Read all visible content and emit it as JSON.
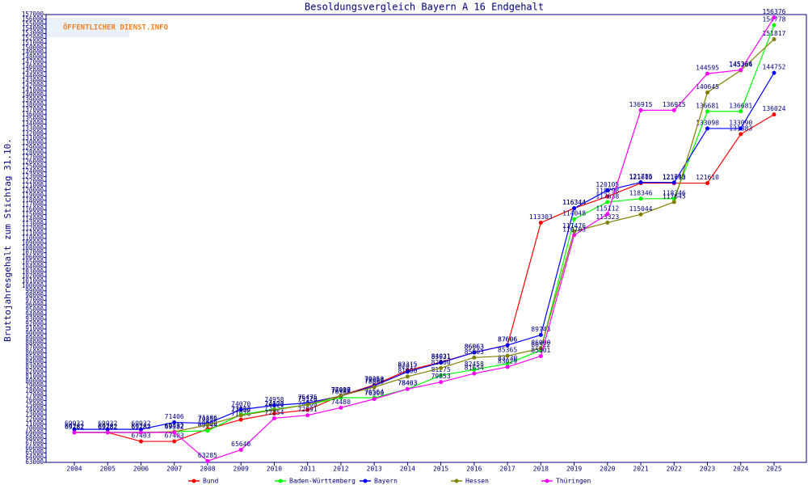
{
  "chart_data": {
    "type": "line",
    "title": "Besoldungsvergleich Bayern A 16 Endgehalt",
    "logo": "ÖFFENTLICHER DIENST.INFO",
    "y_label": "Bruttojahresgehalt zum Stichtag 31.10.",
    "categories": [
      "2004",
      "2005",
      "2006",
      "2007",
      "2008",
      "2009",
      "2010",
      "2011",
      "2012",
      "2013",
      "2014",
      "2015",
      "2016",
      "2017",
      "2018",
      "2019",
      "2020",
      "2021",
      "2022",
      "2023",
      "2024",
      "2025"
    ],
    "series": [
      {
        "name": "Bund",
        "color": "#ff0000",
        "values": [
          69282,
          69282,
          67403,
          67403,
          69990,
          71976,
          73254,
          74000,
          77017,
          79250,
          82315,
          84031,
          86063,
          87606,
          113303,
          116344,
          118798,
          121610,
          121610,
          121610,
          131883,
          136024
        ]
      },
      {
        "name": "Baden-Württemberg",
        "color": "#00ff00",
        "values": [
          69282,
          69282,
          69282,
          69432,
          69644,
          73033,
          74123,
          75126,
          76568,
          76564,
          78403,
          81275,
          82458,
          83730,
          86522,
          114048,
          117638,
          118346,
          118346,
          136681,
          136681,
          154778
        ]
      },
      {
        "name": "Bayern",
        "color": "#0000ff",
        "values": [
          69932,
          69932,
          69932,
          71406,
          71186,
          74070,
          74958,
          75475,
          76925,
          79094,
          82017,
          83921,
          86063,
          87606,
          89743,
          116344,
          120105,
          121785,
          121745,
          133090,
          133090,
          144752
        ]
      },
      {
        "name": "Hessen",
        "color": "#808000",
        "values": [
          69282,
          69282,
          69282,
          69432,
          70850,
          72856,
          74000,
          75126,
          77000,
          78800,
          81000,
          82800,
          85003,
          85365,
          86900,
          111476,
          113323,
          115044,
          117645,
          140645,
          145264,
          151817
        ]
      },
      {
        "name": "Thüringen",
        "color": "#ff00ff",
        "values": [
          69282,
          69282,
          69282,
          69282,
          63285,
          65640,
          72254,
          72891,
          74480,
          76300,
          78403,
          79853,
          81654,
          83029,
          85301,
          110703,
          115112,
          136915,
          136915,
          144595,
          145366,
          156376
        ]
      }
    ],
    "ylim": [
      63000,
      157000
    ],
    "yticks": [
      63000,
      64000,
      65000,
      66000,
      67000,
      68000,
      69000,
      70000,
      71000,
      72000,
      73000,
      74000,
      75000,
      76000,
      77000,
      78000,
      79000,
      80000,
      81000,
      82000,
      83000,
      84000,
      85000,
      86000,
      87000,
      88000,
      89000,
      90000,
      91000,
      92000,
      93000,
      94000,
      95000,
      96000,
      97000,
      98000,
      99000,
      100000,
      101000,
      102000,
      103000,
      104000,
      105000,
      106000,
      107000,
      108000,
      109000,
      110000,
      111000,
      112000,
      113000,
      114000,
      115000,
      116000,
      117000,
      118000,
      119000,
      120000,
      121000,
      122000,
      123000,
      124000,
      125000,
      126000,
      127000,
      128000,
      129000,
      130000,
      131000,
      132000,
      133000,
      134000,
      135000,
      136000,
      137000,
      138000,
      139000,
      140000,
      141000,
      142000,
      143000,
      144000,
      145000,
      146000,
      147000,
      148000,
      149000,
      150000,
      151000,
      152000,
      153000,
      154000,
      155000,
      156000,
      157000
    ]
  }
}
